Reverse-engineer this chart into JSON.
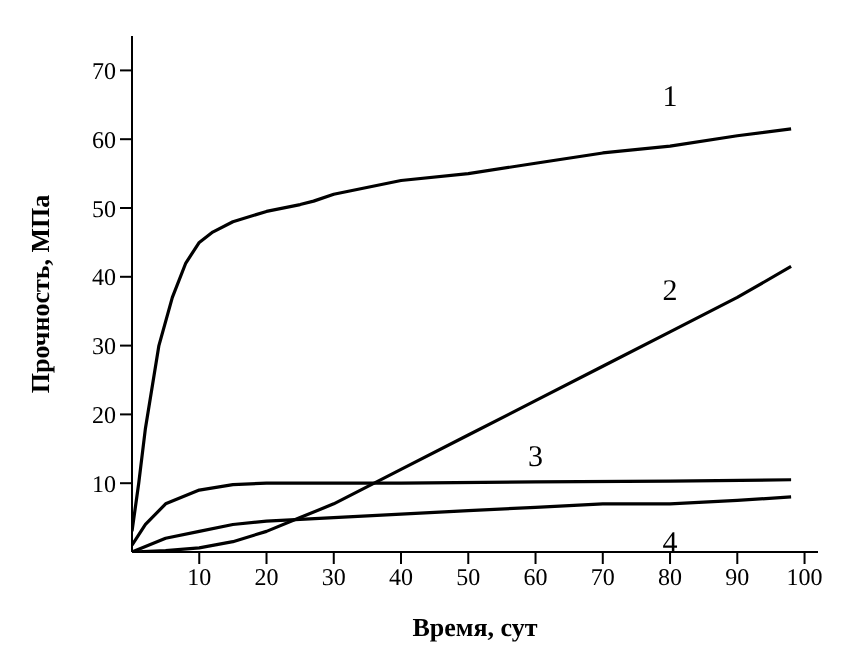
{
  "chart_data": {
    "type": "line",
    "xlabel": "Время, сут",
    "ylabel": "Прочность, МПа",
    "xlim": [
      0,
      102
    ],
    "ylim": [
      0,
      75
    ],
    "xticks": [
      10,
      20,
      30,
      40,
      50,
      60,
      70,
      80,
      90,
      100
    ],
    "yticks": [
      10,
      20,
      30,
      40,
      50,
      60,
      70
    ],
    "grid": false,
    "legend": false,
    "marker": "none",
    "line_style": "solid",
    "series": [
      {
        "name": "1",
        "color": "#000000",
        "x": [
          0,
          1,
          2,
          4,
          6,
          8,
          10,
          12,
          15,
          20,
          25,
          27,
          30,
          40,
          50,
          60,
          70,
          80,
          90,
          98
        ],
        "values": [
          3,
          10,
          18,
          30,
          37,
          42,
          45,
          46.5,
          48,
          49.5,
          50.5,
          51,
          52,
          54,
          55,
          56.5,
          58,
          59,
          60.5,
          61.5
        ]
      },
      {
        "name": "2",
        "color": "#000000",
        "x": [
          0,
          5,
          10,
          15,
          20,
          25,
          30,
          40,
          50,
          60,
          70,
          80,
          90,
          98
        ],
        "values": [
          0,
          0.2,
          0.6,
          1.5,
          3,
          5,
          7,
          12,
          17,
          22,
          27,
          32,
          37,
          41.5
        ]
      },
      {
        "name": "3",
        "color": "#000000",
        "x": [
          0,
          2,
          5,
          10,
          15,
          20,
          40,
          60,
          80,
          98
        ],
        "values": [
          1,
          4,
          7,
          9,
          9.8,
          10,
          10,
          10.2,
          10.3,
          10.5
        ]
      },
      {
        "name": "4",
        "color": "#000000",
        "x": [
          0,
          5,
          10,
          15,
          20,
          30,
          40,
          50,
          60,
          70,
          80,
          90,
          98
        ],
        "values": [
          0,
          2,
          3,
          4,
          4.5,
          5,
          5.5,
          6,
          6.5,
          7,
          7,
          7.5,
          8
        ]
      }
    ]
  }
}
